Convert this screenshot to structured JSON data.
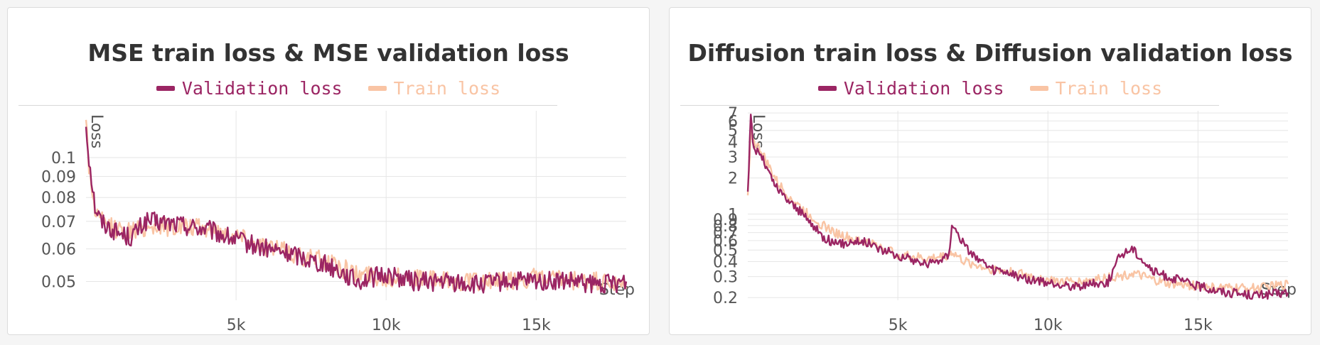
{
  "colors": {
    "validation": "#9b2563",
    "train": "#f9c4a4",
    "grid": "#e6e6e6",
    "text": "#555555"
  },
  "chart_data": [
    {
      "type": "line",
      "title": "MSE train loss & MSE validation loss",
      "ylabel": "Loss",
      "xlabel": "Step",
      "yscale": "log",
      "xlim": [
        0,
        18000
      ],
      "ylim": [
        0.045,
        0.13
      ],
      "yticks": [
        0.05,
        0.06,
        0.07,
        0.08,
        0.09,
        0.1
      ],
      "ytick_labels": [
        "0.05",
        "0.06",
        "0.07",
        "0.08",
        "0.09",
        "0.1"
      ],
      "xticks": [
        5000,
        10000,
        15000
      ],
      "xtick_labels": [
        "5k",
        "10k",
        "15k"
      ],
      "grid": true,
      "legend_position": "top",
      "series": [
        {
          "name": "Validation loss",
          "color": "#9b2563",
          "x": [
            0,
            100,
            300,
            500,
            1000,
            1500,
            2000,
            3000,
            4000,
            5000,
            6000,
            7000,
            8000,
            8500,
            9000,
            9500,
            10000,
            11000,
            12000,
            13000,
            14000,
            15000,
            16000,
            17000,
            18000
          ],
          "y": [
            0.12,
            0.1,
            0.076,
            0.07,
            0.066,
            0.064,
            0.07,
            0.069,
            0.067,
            0.063,
            0.06,
            0.058,
            0.055,
            0.053,
            0.05,
            0.051,
            0.052,
            0.05,
            0.05,
            0.049,
            0.05,
            0.05,
            0.05,
            0.049,
            0.05
          ]
        },
        {
          "name": "Train loss",
          "color": "#f9c4a4",
          "x": [
            0,
            100,
            300,
            500,
            1000,
            1500,
            2000,
            3000,
            4000,
            5000,
            6000,
            7000,
            8000,
            8500,
            9000,
            9500,
            10000,
            11000,
            12000,
            13000,
            14000,
            15000,
            16000,
            17000,
            18000
          ],
          "y": [
            0.125,
            0.095,
            0.074,
            0.07,
            0.067,
            0.066,
            0.068,
            0.068,
            0.067,
            0.065,
            0.061,
            0.058,
            0.056,
            0.054,
            0.052,
            0.052,
            0.051,
            0.051,
            0.05,
            0.05,
            0.05,
            0.051,
            0.05,
            0.05,
            0.048
          ]
        }
      ]
    },
    {
      "type": "line",
      "title": "Diffusion train loss & Diffusion validation loss",
      "ylabel": "Loss",
      "xlabel": "Step",
      "yscale": "log",
      "xlim": [
        0,
        18000
      ],
      "ylim": [
        0.19,
        7.3
      ],
      "yticks": [
        0.2,
        0.3,
        0.4,
        0.5,
        0.6,
        0.7,
        0.8,
        0.9,
        1,
        2,
        3,
        4,
        5,
        6,
        7
      ],
      "ytick_labels": [
        "0.2",
        "0.3",
        "0.4",
        "0.5",
        "0.6",
        "0.7",
        "0.8",
        "0.9",
        "1",
        "2",
        "3",
        "4",
        "5",
        "6",
        "7"
      ],
      "xticks": [
        5000,
        10000,
        15000
      ],
      "xtick_labels": [
        "5k",
        "10k",
        "15k"
      ],
      "grid": true,
      "legend_position": "top",
      "series": [
        {
          "name": "Validation loss",
          "color": "#9b2563",
          "x": [
            0,
            100,
            200,
            400,
            700,
            1000,
            1500,
            2000,
            2500,
            3000,
            3500,
            4000,
            4500,
            5000,
            6000,
            6700,
            6800,
            7200,
            8000,
            9000,
            10000,
            11000,
            12000,
            12400,
            12800,
            13500,
            14000,
            15000,
            16000,
            17000,
            18000
          ],
          "y": [
            1.5,
            6.5,
            3.5,
            3.3,
            2.2,
            1.6,
            1.2,
            0.9,
            0.65,
            0.55,
            0.6,
            0.58,
            0.5,
            0.45,
            0.38,
            0.45,
            0.85,
            0.55,
            0.35,
            0.3,
            0.26,
            0.25,
            0.27,
            0.45,
            0.52,
            0.33,
            0.3,
            0.25,
            0.22,
            0.21,
            0.22
          ]
        },
        {
          "name": "Train loss",
          "color": "#f9c4a4",
          "x": [
            0,
            100,
            200,
            400,
            700,
            1000,
            1500,
            2000,
            2500,
            3000,
            3500,
            4000,
            4500,
            5000,
            6000,
            6700,
            6800,
            7200,
            8000,
            9000,
            10000,
            11000,
            12000,
            12400,
            12800,
            13500,
            14000,
            15000,
            16000,
            17000,
            18000
          ],
          "y": [
            1.4,
            5.0,
            4.0,
            3.5,
            2.5,
            1.8,
            1.3,
            1.0,
            0.8,
            0.68,
            0.62,
            0.58,
            0.52,
            0.46,
            0.42,
            0.45,
            0.48,
            0.4,
            0.35,
            0.32,
            0.28,
            0.27,
            0.3,
            0.3,
            0.32,
            0.28,
            0.26,
            0.25,
            0.24,
            0.24,
            0.26
          ]
        }
      ]
    }
  ]
}
